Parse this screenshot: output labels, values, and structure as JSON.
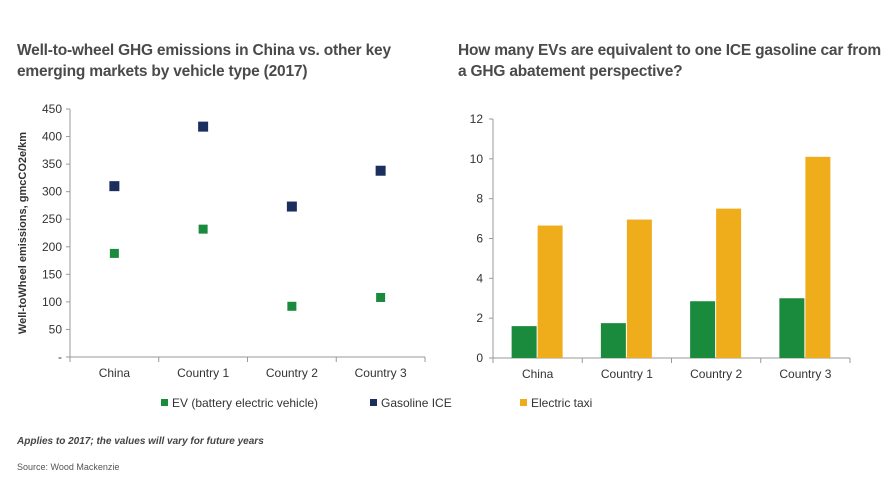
{
  "titles": {
    "left": "Well-to-wheel GHG emissions in China vs. other key emerging markets by vehicle type (2017)",
    "right": "How many EVs are equivalent to one ICE gasoline car from a GHG abatement perspective?"
  },
  "footer": {
    "note": "Applies to 2017; the values will vary for future years",
    "source": "Source: Wood Mackenzie"
  },
  "colors": {
    "ev": "#1a8a3c",
    "ice": "#1c2e5e",
    "taxi": "#f0ad1b",
    "axis": "#999999"
  },
  "chart_data": [
    {
      "type": "scatter",
      "categories": [
        "China",
        "Country 1",
        "Country 2",
        "Country 3"
      ],
      "ylabel": "Well-toWheel emissions, gmcCO2e/km",
      "ylim": [
        0,
        450
      ],
      "yticks": [
        "-",
        "50",
        "100",
        "150",
        "200",
        "250",
        "300",
        "350",
        "400",
        "450"
      ],
      "yticks_values": [
        0,
        50,
        100,
        150,
        200,
        250,
        300,
        350,
        400,
        450
      ],
      "series": [
        {
          "name": "EV (battery electric vehicle)",
          "values": [
            188,
            232,
            92,
            108
          ]
        },
        {
          "name": "Gasoline ICE",
          "values": [
            310,
            418,
            273,
            338
          ]
        }
      ],
      "legend": "bottom"
    },
    {
      "type": "bar",
      "categories": [
        "China",
        "Country 1",
        "Country 2",
        "Country 3"
      ],
      "ylim": [
        0,
        12
      ],
      "yticks": [
        "0",
        "2",
        "4",
        "6",
        "8",
        "10",
        "12"
      ],
      "yticks_values": [
        0,
        2,
        4,
        6,
        8,
        10,
        12
      ],
      "series": [
        {
          "name": "",
          "values": [
            1.6,
            1.75,
            2.85,
            3.0
          ]
        },
        {
          "name": "Electric taxi",
          "values": [
            6.65,
            6.95,
            7.5,
            10.1
          ]
        }
      ],
      "legend": "bottom"
    }
  ]
}
